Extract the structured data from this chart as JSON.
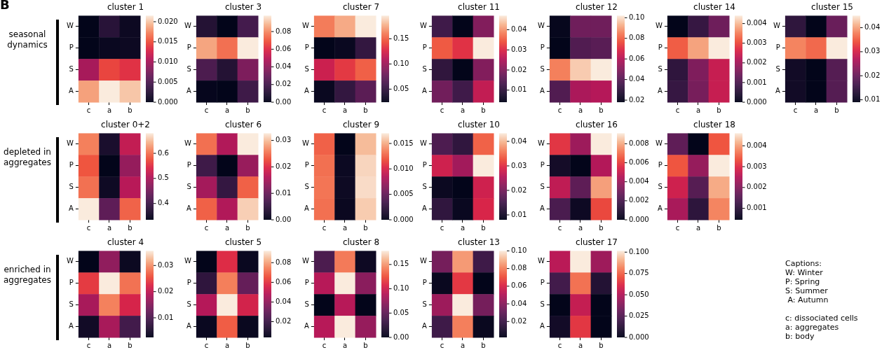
{
  "chart_data": [
    {
      "type": "heatmap",
      "title": "cluster 1",
      "annotations": [
        "B",
        "seasonal dynamics"
      ],
      "categories": [
        "c",
        "a",
        "b"
      ],
      "y_categories": [
        "W",
        "P",
        "S",
        "A"
      ],
      "cells": [
        [
          0.0,
          0.0025,
          0.0007
        ],
        [
          0.0,
          0.0005,
          0.0007
        ],
        [
          0.01,
          0.0145,
          0.0135
        ],
        [
          0.0185,
          0.0215,
          0.02
        ]
      ],
      "clim": [
        0,
        0.0215
      ],
      "cticks": [
        {
          "value": 0,
          "label": "0.000"
        },
        0.005,
        {
          "value": 0.01,
          "label": "0.010"
        },
        0.015,
        {
          "value": 0.02,
          "label": "0.020"
        }
      ]
    },
    {
      "type": "heatmap",
      "title": "cluster 3",
      "categories": [
        "c",
        "a",
        "b"
      ],
      "y_categories": [
        "W",
        "P",
        "S",
        "A"
      ],
      "cells": [
        [
          0.01,
          0.0,
          0.02
        ],
        [
          0.085,
          0.075,
          0.098
        ],
        [
          0.022,
          0.01,
          0.035
        ],
        [
          0.001,
          0.0,
          0.018
        ]
      ],
      "clim": [
        0,
        0.098
      ],
      "cticks": [
        {
          "value": 0,
          "label": "0.00"
        },
        0.02,
        0.04,
        0.06,
        0.08
      ]
    },
    {
      "type": "heatmap",
      "title": "cluster 7",
      "categories": [
        "c",
        "a",
        "b"
      ],
      "y_categories": [
        "W",
        "P",
        "S",
        "A"
      ],
      "cells": [
        [
          0.16,
          0.175,
          0.196
        ],
        [
          0.024,
          0.028,
          0.05
        ],
        [
          0.12,
          0.135,
          0.15
        ],
        [
          0.028,
          0.05,
          0.07
        ]
      ],
      "clim": [
        0.024,
        0.196
      ],
      "cticks": [
        0.05,
        {
          "value": 0.1,
          "label": "0.10"
        },
        0.15
      ]
    },
    {
      "type": "heatmap",
      "title": "cluster 11",
      "categories": [
        "c",
        "a",
        "b"
      ],
      "y_categories": [
        "W",
        "P",
        "S",
        "A"
      ],
      "cells": [
        [
          0.012,
          0.004,
          0.02
        ],
        [
          0.035,
          0.031,
          0.047
        ],
        [
          0.01,
          0.004,
          0.02
        ],
        [
          0.018,
          0.012,
          0.027
        ]
      ],
      "clim": [
        0.004,
        0.047
      ],
      "cticks": [
        0.01,
        0.02,
        0.03,
        0.04
      ]
    },
    {
      "type": "heatmap",
      "title": "cluster 12",
      "categories": [
        "c",
        "a",
        "b"
      ],
      "y_categories": [
        "W",
        "P",
        "S",
        "A"
      ],
      "cells": [
        [
          0.019,
          0.045,
          0.045
        ],
        [
          0.018,
          0.038,
          0.04
        ],
        [
          0.085,
          0.097,
          0.102
        ],
        [
          0.038,
          0.058,
          0.06
        ]
      ],
      "clim": [
        0.018,
        0.102
      ],
      "cticks": [
        0.02,
        0.04,
        0.06,
        0.08,
        {
          "value": 0.1,
          "label": "0.10"
        }
      ]
    },
    {
      "type": "heatmap",
      "title": "cluster 14",
      "categories": [
        "c",
        "a",
        "b"
      ],
      "y_categories": [
        "W",
        "P",
        "S",
        "A"
      ],
      "cells": [
        [
          0.0,
          0.0007,
          0.0014
        ],
        [
          0.0032,
          0.0038,
          0.0044
        ],
        [
          0.0006,
          0.0016,
          0.0024
        ],
        [
          0.0007,
          0.0015,
          0.0024
        ]
      ],
      "clim": [
        0,
        0.0044
      ],
      "cticks": [
        {
          "value": 0,
          "label": "0.000"
        },
        0.001,
        0.002,
        0.003,
        0.004
      ]
    },
    {
      "type": "heatmap",
      "title": "cluster 15",
      "categories": [
        "c",
        "a",
        "b"
      ],
      "y_categories": [
        "W",
        "P",
        "S",
        "A"
      ],
      "cells": [
        [
          0.014,
          0.009,
          0.02
        ],
        [
          0.038,
          0.036,
          0.045
        ],
        [
          0.0107,
          0.009,
          0.018
        ],
        [
          0.0107,
          0.009,
          0.018
        ]
      ],
      "clim": [
        0.009,
        0.045
      ],
      "cticks": [
        0.01,
        0.02,
        0.03,
        0.04
      ]
    },
    {
      "type": "heatmap",
      "title": "cluster 0+2",
      "annotations": [
        "depleted in aggregates"
      ],
      "categories": [
        "c",
        "a",
        "b"
      ],
      "y_categories": [
        "W",
        "P",
        "S",
        "A"
      ],
      "cells": [
        [
          0.61,
          0.36,
          0.52
        ],
        [
          0.58,
          0.335,
          0.48
        ],
        [
          0.6,
          0.348,
          0.51
        ],
        [
          0.68,
          0.43,
          0.59
        ]
      ],
      "clim": [
        0.335,
        0.68
      ],
      "cticks": [
        0.4,
        0.5,
        0.6
      ]
    },
    {
      "type": "heatmap",
      "title": "cluster 6",
      "categories": [
        "c",
        "a",
        "b"
      ],
      "y_categories": [
        "W",
        "P",
        "S",
        "A"
      ],
      "cells": [
        [
          0.025,
          0.016,
          0.0327
        ],
        [
          0.006,
          0.0,
          0.014
        ],
        [
          0.015,
          0.005,
          0.024
        ],
        [
          0.024,
          0.016,
          0.031
        ]
      ],
      "clim": [
        0,
        0.0327
      ],
      "cticks": [
        {
          "value": 0,
          "label": "0.00"
        },
        0.01,
        0.02,
        0.03
      ]
    },
    {
      "type": "heatmap",
      "title": "cluster 9",
      "categories": [
        "c",
        "a",
        "b"
      ],
      "y_categories": [
        "W",
        "P",
        "S",
        "A"
      ],
      "cells": [
        [
          0.0125,
          0.0,
          0.0155
        ],
        [
          0.013,
          0.0005,
          0.0163
        ],
        [
          0.0132,
          0.0006,
          0.0165
        ],
        [
          0.013,
          0.0004,
          0.016
        ]
      ],
      "clim": [
        0,
        0.017
      ],
      "cticks": [
        {
          "value": 0,
          "label": "0.000"
        },
        0.005,
        {
          "value": 0.01,
          "label": "0.010"
        },
        0.015
      ]
    },
    {
      "type": "heatmap",
      "title": "cluster 10",
      "categories": [
        "c",
        "a",
        "b"
      ],
      "y_categories": [
        "W",
        "P",
        "S",
        "A"
      ],
      "cells": [
        [
          0.016,
          0.013,
          0.034
        ],
        [
          0.028,
          0.024,
          0.0433
        ],
        [
          0.009,
          0.008,
          0.028
        ],
        [
          0.013,
          0.0088,
          0.029
        ]
      ],
      "clim": [
        0.008,
        0.0433
      ],
      "cticks": [
        0.01,
        0.02,
        0.03,
        0.04
      ]
    },
    {
      "type": "heatmap",
      "title": "cluster 16",
      "categories": [
        "c",
        "a",
        "b"
      ],
      "y_categories": [
        "W",
        "P",
        "S",
        "A"
      ],
      "cells": [
        [
          0.0058,
          0.004,
          0.0091
        ],
        [
          0.0005,
          0.0,
          0.0045
        ],
        [
          0.0048,
          0.0025,
          0.0078
        ],
        [
          0.002,
          0.0003,
          0.0062
        ]
      ],
      "clim": [
        0,
        0.0091
      ],
      "cticks": [
        {
          "value": 0,
          "label": "0.000"
        },
        0.002,
        0.004,
        0.006,
        0.008
      ]
    },
    {
      "type": "heatmap",
      "title": "cluster 18",
      "categories": [
        "c",
        "a",
        "b"
      ],
      "y_categories": [
        "W",
        "P",
        "S",
        "A"
      ],
      "cells": [
        [
          0.0016,
          0.00045,
          0.0034
        ],
        [
          0.0034,
          0.0022,
          0.0046
        ],
        [
          0.0028,
          0.0015,
          0.0041
        ],
        [
          0.0024,
          0.001,
          0.0038
        ]
      ],
      "clim": [
        0.00045,
        0.0046
      ],
      "cticks": [
        0.001,
        0.002,
        0.003,
        0.004
      ]
    },
    {
      "type": "heatmap",
      "title": "cluster 4",
      "annotations": [
        "enriched in aggregates"
      ],
      "categories": [
        "c",
        "a",
        "b"
      ],
      "y_categories": [
        "W",
        "P",
        "S",
        "A"
      ],
      "cells": [
        [
          0.0025,
          0.016,
          0.0034
        ],
        [
          0.024,
          0.0356,
          0.028
        ],
        [
          0.018,
          0.029,
          0.022
        ],
        [
          0.004,
          0.018,
          0.009
        ]
      ],
      "clim": [
        0.0025,
        0.0356
      ],
      "cticks": [
        0.01,
        0.02,
        0.03
      ]
    },
    {
      "type": "heatmap",
      "title": "cluster 5",
      "categories": [
        "c",
        "a",
        "b"
      ],
      "y_categories": [
        "W",
        "P",
        "S",
        "A"
      ],
      "cells": [
        [
          0.004,
          0.058,
          0.006
        ],
        [
          0.016,
          0.074,
          0.03
        ],
        [
          0.048,
          0.092,
          0.055
        ],
        [
          0.006,
          0.068,
          0.0058
        ]
      ],
      "clim": [
        0.004,
        0.092
      ],
      "cticks": [
        0.02,
        0.04,
        0.06,
        0.08
      ]
    },
    {
      "type": "heatmap",
      "title": "cluster 8",
      "categories": [
        "c",
        "a",
        "b"
      ],
      "y_categories": [
        "W",
        "P",
        "S",
        "A"
      ],
      "cells": [
        [
          0.04,
          0.14,
          0.006
        ],
        [
          0.09,
          0.178,
          0.07
        ],
        [
          0.0,
          0.09,
          0.0
        ],
        [
          0.09,
          0.178,
          0.075
        ]
      ],
      "clim": [
        0,
        0.178
      ],
      "cticks": [
        {
          "value": 0,
          "label": "0.00"
        },
        0.05,
        {
          "value": 0.1,
          "label": "0.10"
        },
        0.15
      ]
    },
    {
      "type": "heatmap",
      "title": "cluster 13",
      "categories": [
        "c",
        "a",
        "b"
      ],
      "y_categories": [
        "W",
        "P",
        "S",
        "A"
      ],
      "cells": [
        [
          0.035,
          0.085,
          0.02
        ],
        [
          0.004,
          0.065,
          0.002
        ],
        [
          0.045,
          0.1,
          0.035
        ],
        [
          0.02,
          0.08,
          0.004
        ]
      ],
      "clim": [
        0.002,
        0.1
      ],
      "cticks": [
        0.02,
        0.04,
        0.06,
        0.08,
        {
          "value": 0.1,
          "label": "0.10"
        }
      ]
    },
    {
      "type": "heatmap",
      "title": "cluster 17",
      "categories": [
        "c",
        "a",
        "b"
      ],
      "y_categories": [
        "W",
        "P",
        "S",
        "A"
      ],
      "cells": [
        [
          0.052,
          0.1015,
          0.045
        ],
        [
          0.02,
          0.078,
          0.01
        ],
        [
          0.0,
          0.055,
          0.0
        ],
        [
          0.005,
          0.065,
          0.0
        ]
      ],
      "clim": [
        0,
        0.1015
      ],
      "cticks": [
        {
          "value": 0,
          "label": "0.000"
        },
        0.025,
        {
          "value": 0.05,
          "label": "0.050"
        },
        0.075,
        {
          "value": 0.1,
          "label": "0.100"
        }
      ]
    },
    {
      "type": "other",
      "annotations": [
        "Captions:\nW: Winter\nP: Spring\nS: Summer\n A: Autumn",
        "c: dissociated cells\na: aggregates\nb: body"
      ]
    }
  ]
}
